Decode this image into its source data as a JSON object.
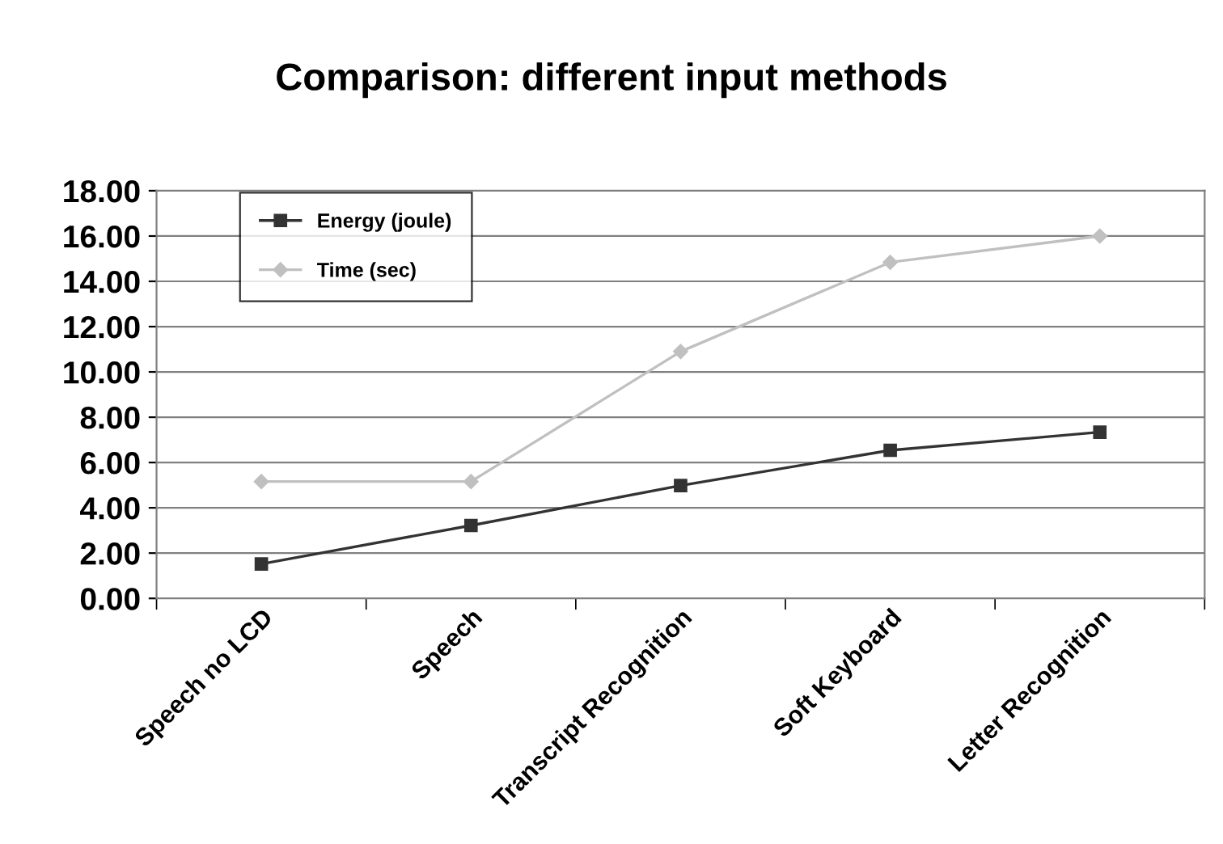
{
  "chart_data": {
    "type": "line",
    "title": "Comparison: different input methods",
    "categories": [
      "Speech no LCD",
      "Speech",
      "Transcript Recognition",
      "Soft Keyboard",
      "Letter Recognition"
    ],
    "series": [
      {
        "name": "Energy (joule)",
        "color": "#333333",
        "marker": "square",
        "values": [
          1.52,
          3.22,
          4.98,
          6.54,
          7.34
        ]
      },
      {
        "name": "Time (sec)",
        "color": "#c0c0c0",
        "marker": "diamond",
        "values": [
          5.16,
          5.16,
          10.9,
          14.84,
          16.0
        ]
      }
    ],
    "ylim": [
      0,
      18
    ],
    "yticks": [
      {
        "value": 0,
        "label": "0.00"
      },
      {
        "value": 2,
        "label": "2.00"
      },
      {
        "value": 4,
        "label": "4.00"
      },
      {
        "value": 6,
        "label": "6.00"
      },
      {
        "value": 8,
        "label": "8.00"
      },
      {
        "value": 10,
        "label": "10.00"
      },
      {
        "value": 12,
        "label": "12.00"
      },
      {
        "value": 14,
        "label": "14.00"
      },
      {
        "value": 16,
        "label": "16.00"
      },
      {
        "value": 18,
        "label": "18.00"
      }
    ],
    "grid": "y",
    "legend": "top left",
    "line_style": "solid"
  }
}
